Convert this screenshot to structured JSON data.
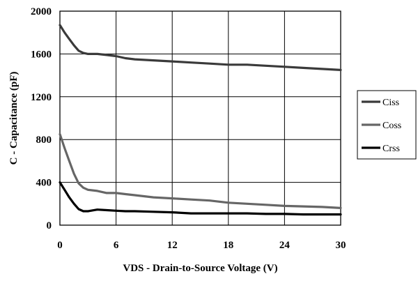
{
  "chart_data": {
    "type": "line",
    "title": "",
    "xlabel": "VDS - Drain-to-Source Voltage (V)",
    "ylabel": "C - Capacitance (pF)",
    "xlim": [
      0,
      30
    ],
    "ylim": [
      0,
      2000
    ],
    "xticks": [
      0,
      6,
      12,
      18,
      24,
      30
    ],
    "yticks": [
      0,
      400,
      800,
      1200,
      1600,
      2000
    ],
    "grid": true,
    "legend_position": "right",
    "series": [
      {
        "name": "Ciss",
        "color": "#3a3a3a",
        "x": [
          0,
          0.5,
          1,
          1.5,
          2,
          2.5,
          3,
          4,
          5,
          6,
          7,
          8,
          10,
          12,
          14,
          16,
          18,
          20,
          22,
          24,
          26,
          28,
          30
        ],
        "y": [
          1870,
          1800,
          1740,
          1680,
          1630,
          1610,
          1600,
          1600,
          1590,
          1580,
          1560,
          1550,
          1540,
          1530,
          1520,
          1510,
          1500,
          1500,
          1490,
          1480,
          1470,
          1460,
          1450
        ]
      },
      {
        "name": "Coss",
        "color": "#666666",
        "x": [
          0,
          0.5,
          1,
          1.5,
          2,
          2.5,
          3,
          4,
          5,
          6,
          7,
          8,
          10,
          12,
          14,
          16,
          18,
          20,
          22,
          24,
          26,
          28,
          30
        ],
        "y": [
          850,
          720,
          600,
          480,
          390,
          350,
          330,
          320,
          300,
          300,
          290,
          280,
          260,
          250,
          240,
          230,
          210,
          200,
          190,
          180,
          175,
          170,
          160
        ]
      },
      {
        "name": "Crss",
        "color": "#000000",
        "x": [
          0,
          0.5,
          1,
          1.5,
          2,
          2.5,
          3,
          4,
          5,
          6,
          7,
          8,
          10,
          12,
          14,
          16,
          18,
          20,
          22,
          24,
          26,
          28,
          30
        ],
        "y": [
          400,
          330,
          260,
          200,
          150,
          130,
          130,
          145,
          140,
          135,
          130,
          130,
          125,
          120,
          110,
          110,
          110,
          110,
          105,
          105,
          100,
          100,
          100
        ]
      }
    ]
  }
}
